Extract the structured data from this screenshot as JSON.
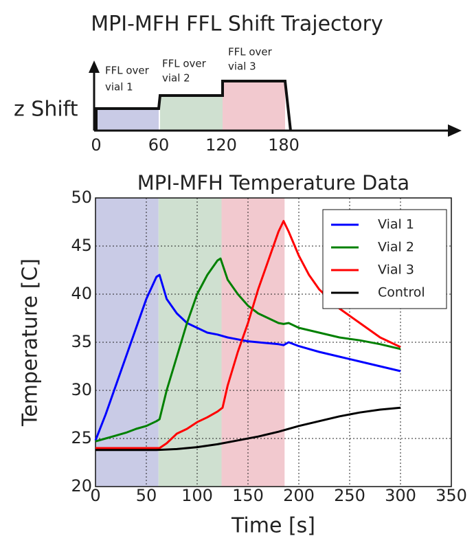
{
  "chart_data": [
    {
      "type": "trajectory",
      "title": "MPI-MFH FFL Shift Trajectory",
      "ylabel": "z Shift",
      "xticks": [
        0,
        60,
        120,
        180
      ],
      "xlim": [
        0,
        180
      ],
      "regions": [
        {
          "start": 0,
          "end": 60,
          "color": "#c9cbe6",
          "label": [
            "FFL over",
            "vial 1"
          ]
        },
        {
          "start": 60,
          "end": 120,
          "color": "#cfe0d0",
          "label": [
            "FFL over",
            "vial 2"
          ]
        },
        {
          "start": 120,
          "end": 180,
          "color": "#f2c9cf",
          "label": [
            "FFL over",
            "vial 3"
          ]
        }
      ]
    },
    {
      "type": "line",
      "title": "MPI-MFH Temperature Data",
      "xlabel": "Time [s]",
      "ylabel": "Temperature [C]",
      "xlim": [
        0,
        350
      ],
      "ylim": [
        20,
        50
      ],
      "xticks": [
        0,
        50,
        100,
        150,
        200,
        250,
        300,
        350
      ],
      "yticks": [
        20,
        25,
        30,
        35,
        40,
        45,
        50
      ],
      "grid": true,
      "legend": "upper right",
      "regions": [
        {
          "start": 0,
          "end": 62,
          "color": "#c9cbe6"
        },
        {
          "start": 62,
          "end": 124,
          "color": "#cfe0d0"
        },
        {
          "start": 124,
          "end": 186,
          "color": "#f2c9cf"
        }
      ],
      "series": [
        {
          "name": "Vial 1",
          "color": "#0000ff",
          "x": [
            0,
            10,
            20,
            30,
            40,
            50,
            60,
            63,
            70,
            80,
            90,
            100,
            110,
            120,
            130,
            140,
            150,
            160,
            170,
            180,
            185,
            190,
            200,
            220,
            240,
            260,
            280,
            300
          ],
          "values": [
            24.8,
            27.5,
            30.5,
            33.5,
            36.5,
            39.5,
            41.8,
            42.0,
            39.5,
            38.0,
            37.0,
            36.5,
            36.0,
            35.8,
            35.5,
            35.3,
            35.1,
            35.0,
            34.9,
            34.8,
            34.7,
            35.0,
            34.6,
            34.0,
            33.5,
            33.0,
            32.5,
            32.0
          ]
        },
        {
          "name": "Vial 2",
          "color": "#008000",
          "x": [
            0,
            10,
            20,
            30,
            40,
            50,
            60,
            63,
            70,
            80,
            90,
            100,
            110,
            120,
            123,
            130,
            140,
            150,
            160,
            170,
            180,
            185,
            190,
            200,
            220,
            240,
            260,
            280,
            300
          ],
          "values": [
            24.7,
            25.0,
            25.3,
            25.6,
            26.0,
            26.3,
            26.8,
            27.0,
            30.0,
            33.5,
            37.0,
            40.0,
            42.0,
            43.5,
            43.7,
            41.5,
            40.0,
            38.8,
            38.0,
            37.5,
            37.0,
            36.9,
            37.0,
            36.5,
            36.0,
            35.5,
            35.2,
            34.8,
            34.3
          ]
        },
        {
          "name": "Vial 3",
          "color": "#ff0000",
          "x": [
            0,
            60,
            63,
            70,
            80,
            90,
            100,
            110,
            120,
            125,
            130,
            140,
            150,
            160,
            170,
            180,
            185,
            190,
            200,
            210,
            220,
            240,
            260,
            280,
            300
          ],
          "values": [
            24.0,
            24.0,
            24.0,
            24.5,
            25.5,
            26.0,
            26.7,
            27.2,
            27.8,
            28.2,
            30.5,
            34.0,
            37.0,
            40.5,
            43.5,
            46.5,
            47.6,
            46.5,
            44.0,
            42.0,
            40.5,
            38.5,
            37.0,
            35.5,
            34.5
          ]
        },
        {
          "name": "Control",
          "color": "#000000",
          "x": [
            0,
            60,
            80,
            100,
            120,
            140,
            160,
            180,
            200,
            220,
            240,
            260,
            280,
            300
          ],
          "values": [
            23.8,
            23.8,
            23.9,
            24.1,
            24.4,
            24.8,
            25.2,
            25.7,
            26.3,
            26.8,
            27.3,
            27.7,
            28.0,
            28.2
          ]
        }
      ]
    }
  ]
}
